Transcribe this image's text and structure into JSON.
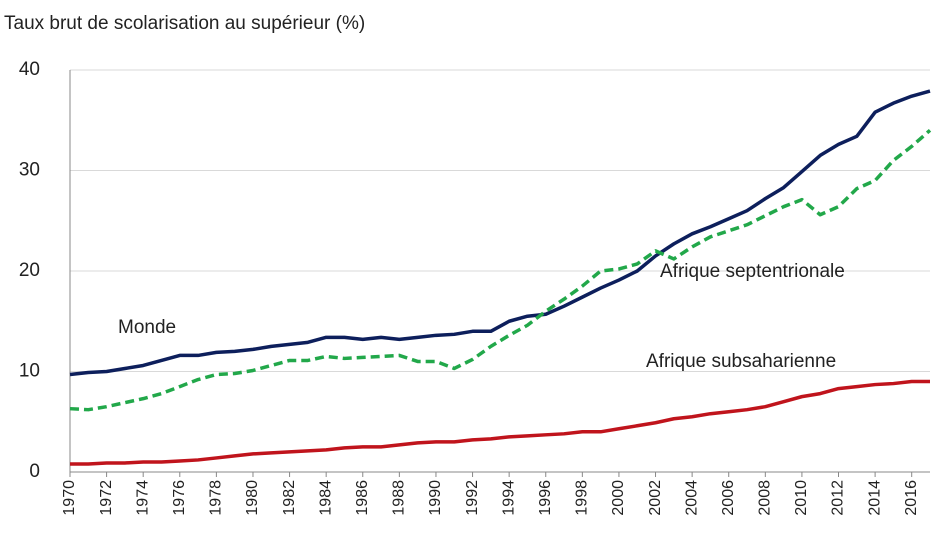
{
  "chart_data": {
    "type": "line",
    "title": "Taux brut de scolarisation au supérieur (%)",
    "x": [
      1970,
      1971,
      1972,
      1973,
      1974,
      1975,
      1976,
      1977,
      1978,
      1979,
      1980,
      1981,
      1982,
      1983,
      1984,
      1985,
      1986,
      1987,
      1988,
      1989,
      1990,
      1991,
      1992,
      1993,
      1994,
      1995,
      1996,
      1997,
      1998,
      1999,
      2000,
      2001,
      2002,
      2003,
      2004,
      2005,
      2006,
      2007,
      2008,
      2009,
      2010,
      2011,
      2012,
      2013,
      2014,
      2015,
      2016,
      2017
    ],
    "series": [
      {
        "name": "Monde",
        "color": "#0d1f5c",
        "style": "solid",
        "values": [
          9.7,
          9.9,
          10.0,
          10.3,
          10.6,
          11.1,
          11.6,
          11.6,
          11.9,
          12.0,
          12.2,
          12.5,
          12.7,
          12.9,
          13.4,
          13.4,
          13.2,
          13.4,
          13.2,
          13.4,
          13.6,
          13.7,
          14.0,
          14.0,
          15.0,
          15.5,
          15.7,
          16.5,
          17.4,
          18.3,
          19.1,
          20.0,
          21.5,
          22.7,
          23.7,
          24.4,
          25.2,
          26.0,
          27.2,
          28.3,
          29.9,
          31.5,
          32.6,
          33.4,
          35.8,
          36.7,
          37.4,
          37.9
        ]
      },
      {
        "name": "Afrique septentrionale",
        "color": "#22a84a",
        "style": "dashed",
        "values": [
          6.3,
          6.2,
          6.5,
          6.9,
          7.3,
          7.8,
          8.5,
          9.2,
          9.7,
          9.8,
          10.1,
          10.6,
          11.1,
          11.1,
          11.5,
          11.3,
          11.4,
          11.5,
          11.6,
          11.0,
          11.0,
          10.3,
          11.2,
          12.5,
          13.6,
          14.6,
          16.0,
          17.2,
          18.5,
          20.0,
          20.2,
          20.7,
          22.0,
          21.2,
          22.4,
          23.4,
          24.0,
          24.6,
          25.5,
          26.4,
          27.1,
          25.6,
          26.4,
          28.2,
          29.0,
          31.0,
          32.4,
          34.0
        ]
      },
      {
        "name": "Afrique subsaharienne",
        "color": "#c0141c",
        "style": "solid",
        "values": [
          0.8,
          0.8,
          0.9,
          0.9,
          1.0,
          1.0,
          1.1,
          1.2,
          1.4,
          1.6,
          1.8,
          1.9,
          2.0,
          2.1,
          2.2,
          2.4,
          2.5,
          2.5,
          2.7,
          2.9,
          3.0,
          3.0,
          3.2,
          3.3,
          3.5,
          3.6,
          3.7,
          3.8,
          4.0,
          4.0,
          4.3,
          4.6,
          4.9,
          5.3,
          5.5,
          5.8,
          6.0,
          6.2,
          6.5,
          7.0,
          7.5,
          7.8,
          8.3,
          8.5,
          8.7,
          8.8,
          9.0,
          9.0
        ]
      }
    ],
    "xlim": [
      1970,
      2017
    ],
    "xticks": [
      1970,
      1972,
      1974,
      1976,
      1978,
      1980,
      1982,
      1984,
      1986,
      1988,
      1990,
      1992,
      1994,
      1996,
      1998,
      2000,
      2002,
      2004,
      2006,
      2008,
      2010,
      2012,
      2014,
      2016
    ],
    "ylim": [
      0,
      40
    ],
    "yticks": [
      0,
      10,
      20,
      30,
      40
    ],
    "grid": true
  }
}
